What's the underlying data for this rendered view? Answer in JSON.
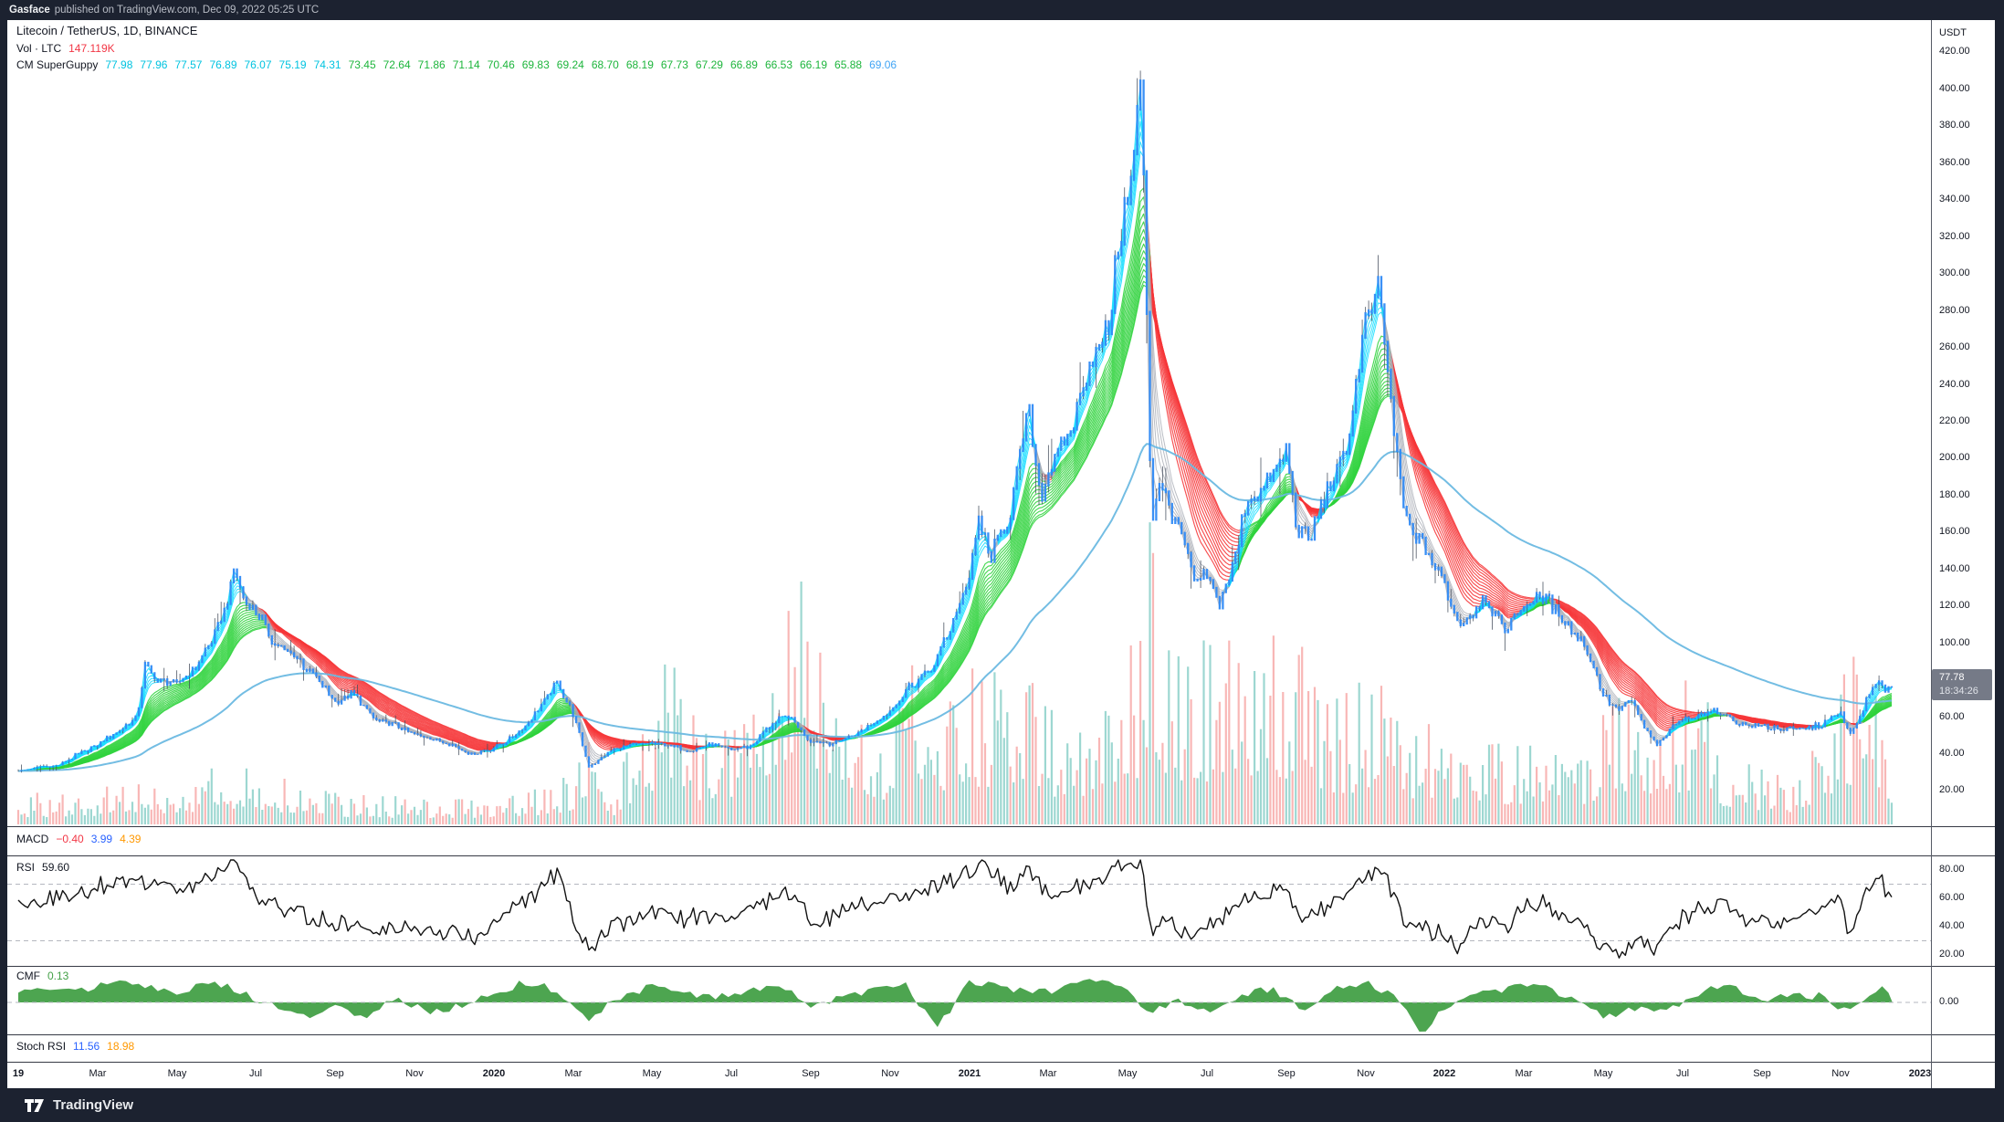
{
  "attribution": {
    "author": "Gasface",
    "text": "published on TradingView.com, Dec 09, 2022 05:25 UTC"
  },
  "symbol": {
    "title": "Litecoin / TetherUS, 1D, BINANCE"
  },
  "volume_legend": {
    "label": "Vol · LTC",
    "value": "147.119K"
  },
  "superguppy": {
    "label": "CM SuperGuppy",
    "fast_values": [
      "77.98",
      "77.96",
      "77.57",
      "76.89",
      "76.07",
      "75.19",
      "74.31"
    ],
    "slow_values": [
      "73.45",
      "72.64",
      "71.86",
      "71.14",
      "70.46",
      "69.83",
      "69.24",
      "68.70",
      "68.19",
      "67.73",
      "67.29",
      "66.89",
      "66.53",
      "66.19",
      "65.88"
    ],
    "last_value": "69.06"
  },
  "macd": {
    "label": "MACD",
    "values": [
      {
        "text": "−0.40",
        "color": "#f23645"
      },
      {
        "text": "3.99",
        "color": "#2962ff"
      },
      {
        "text": "4.39",
        "color": "#ff9800"
      }
    ]
  },
  "rsi": {
    "label": "RSI",
    "value": "59.60",
    "axis_values": [
      80,
      60,
      40,
      20
    ],
    "bands": [
      70,
      30
    ]
  },
  "cmf": {
    "label": "CMF",
    "value": "0.13",
    "axis_values": [
      0
    ]
  },
  "stoch": {
    "label": "Stoch RSI",
    "values": [
      {
        "text": "11.56",
        "color": "#2962ff"
      },
      {
        "text": "18.98",
        "color": "#ff9800"
      }
    ]
  },
  "price_axis": {
    "currency": "USDT",
    "tick_values": [
      420,
      400,
      380,
      360,
      340,
      320,
      300,
      280,
      260,
      240,
      220,
      200,
      180,
      160,
      140,
      120,
      100,
      80,
      60,
      40,
      20
    ],
    "last_price": "77.78",
    "countdown": "18:34:26"
  },
  "time_axis": [
    {
      "m": 0,
      "label": "19",
      "year": true
    },
    {
      "m": 2,
      "label": "Mar"
    },
    {
      "m": 4,
      "label": "May"
    },
    {
      "m": 6,
      "label": "Jul"
    },
    {
      "m": 8,
      "label": "Sep"
    },
    {
      "m": 10,
      "label": "Nov"
    },
    {
      "m": 12,
      "label": "2020",
      "year": true
    },
    {
      "m": 14,
      "label": "Mar"
    },
    {
      "m": 16,
      "label": "May"
    },
    {
      "m": 18,
      "label": "Jul"
    },
    {
      "m": 20,
      "label": "Sep"
    },
    {
      "m": 22,
      "label": "Nov"
    },
    {
      "m": 24,
      "label": "2021",
      "year": true
    },
    {
      "m": 26,
      "label": "Mar"
    },
    {
      "m": 28,
      "label": "May"
    },
    {
      "m": 30,
      "label": "Jul"
    },
    {
      "m": 32,
      "label": "Sep"
    },
    {
      "m": 34,
      "label": "Nov"
    },
    {
      "m": 36,
      "label": "2022",
      "year": true
    },
    {
      "m": 38,
      "label": "Mar"
    },
    {
      "m": 40,
      "label": "May"
    },
    {
      "m": 42,
      "label": "Jul"
    },
    {
      "m": 44,
      "label": "Sep"
    },
    {
      "m": 46,
      "label": "Nov"
    },
    {
      "m": 48,
      "label": "2023",
      "year": true
    }
  ],
  "footer": {
    "brand": "TradingView"
  },
  "colors": {
    "candle": "#2f8af5",
    "wick": "#46505e",
    "guppy_fast": "#00dbff",
    "guppy_fast_flat": "#a9adb5",
    "guppy_up": "#2fd33c",
    "guppy_down": "#f63538",
    "guppy_flat": "#9aa0a6",
    "ma_long": "#6cb9e2",
    "vol_up": "rgba(38,166,154,0.45)",
    "vol_down": "rgba(239,83,80,0.42)",
    "rsi_line": "#121212",
    "band_dash": "#b4b7bf",
    "cmf_fill": "#43a047",
    "text_cyan": "#00c3e0",
    "text_green": "#1db53c",
    "text_blue": "#42a5f5",
    "vol_value_red": "#f23645",
    "tag_bg": "#757a87"
  },
  "chart_data": {
    "type": "candlestick",
    "title": "Litecoin / TetherUS, 1D, BINANCE",
    "x_unit": "months since Jan 2019",
    "x_range": [
      0,
      48
    ],
    "price_ylim": [
      0,
      437
    ],
    "legend_position": "top-left",
    "grid": false,
    "guppy_fast_periods_days": [
      3,
      5,
      7,
      9,
      11,
      13,
      15
    ],
    "guppy_slow_periods_days": [
      25,
      28,
      31,
      34,
      37,
      40,
      43,
      46,
      49,
      52,
      55,
      58,
      61,
      64,
      66
    ],
    "ma_long_period_days": 200,
    "price_anchors": [
      [
        0,
        31
      ],
      [
        0.6,
        33
      ],
      [
        1,
        34
      ],
      [
        1.6,
        41
      ],
      [
        2,
        45
      ],
      [
        2.5,
        52
      ],
      [
        3,
        60
      ],
      [
        3.2,
        88
      ],
      [
        3.5,
        80
      ],
      [
        4,
        78
      ],
      [
        4.5,
        88
      ],
      [
        5,
        105
      ],
      [
        5.3,
        124
      ],
      [
        5.45,
        140
      ],
      [
        5.7,
        124
      ],
      [
        6,
        118
      ],
      [
        6.5,
        99
      ],
      [
        7,
        93
      ],
      [
        7.5,
        81
      ],
      [
        8,
        69
      ],
      [
        8.5,
        73
      ],
      [
        9,
        58
      ],
      [
        9.5,
        56
      ],
      [
        10,
        51
      ],
      [
        10.5,
        48
      ],
      [
        11,
        45
      ],
      [
        11.4,
        40
      ],
      [
        12,
        43
      ],
      [
        12.5,
        50
      ],
      [
        13,
        60
      ],
      [
        13.6,
        79
      ],
      [
        14,
        62
      ],
      [
        14.4,
        33
      ],
      [
        14.8,
        39
      ],
      [
        15,
        42
      ],
      [
        15.5,
        45
      ],
      [
        16,
        46
      ],
      [
        16.5,
        44
      ],
      [
        17,
        42
      ],
      [
        17.5,
        45
      ],
      [
        18,
        42
      ],
      [
        18.5,
        44
      ],
      [
        19,
        56
      ],
      [
        19.4,
        61
      ],
      [
        20,
        47
      ],
      [
        20.5,
        46
      ],
      [
        21,
        49
      ],
      [
        21.5,
        56
      ],
      [
        22,
        63
      ],
      [
        22.5,
        76
      ],
      [
        23,
        84
      ],
      [
        23.5,
        108
      ],
      [
        24,
        135
      ],
      [
        24.25,
        168
      ],
      [
        24.5,
        146
      ],
      [
        25,
        168
      ],
      [
        25.5,
        228
      ],
      [
        25.8,
        178
      ],
      [
        26,
        192
      ],
      [
        26.5,
        212
      ],
      [
        27,
        248
      ],
      [
        27.5,
        268
      ],
      [
        27.8,
        322
      ],
      [
        28.1,
        350
      ],
      [
        28.35,
        408
      ],
      [
        28.6,
        165
      ],
      [
        28.8,
        188
      ],
      [
        29,
        176
      ],
      [
        29.3,
        162
      ],
      [
        29.7,
        132
      ],
      [
        30,
        136
      ],
      [
        30.3,
        122
      ],
      [
        30.7,
        144
      ],
      [
        31,
        178
      ],
      [
        31.5,
        186
      ],
      [
        32,
        205
      ],
      [
        32.25,
        162
      ],
      [
        32.6,
        156
      ],
      [
        33,
        182
      ],
      [
        33.5,
        202
      ],
      [
        34,
        272
      ],
      [
        34.35,
        290
      ],
      [
        34.7,
        218
      ],
      [
        35,
        168
      ],
      [
        35.5,
        152
      ],
      [
        36,
        132
      ],
      [
        36.35,
        110
      ],
      [
        36.7,
        116
      ],
      [
        37,
        126
      ],
      [
        37.5,
        107
      ],
      [
        38,
        121
      ],
      [
        38.5,
        126
      ],
      [
        39,
        112
      ],
      [
        39.5,
        101
      ],
      [
        40,
        72
      ],
      [
        40.35,
        64
      ],
      [
        40.7,
        69
      ],
      [
        41,
        56
      ],
      [
        41.35,
        44
      ],
      [
        41.7,
        53
      ],
      [
        42,
        59
      ],
      [
        42.5,
        62
      ],
      [
        43,
        63
      ],
      [
        43.4,
        56
      ],
      [
        44,
        55
      ],
      [
        44.5,
        54
      ],
      [
        45,
        53
      ],
      [
        45.5,
        56
      ],
      [
        46,
        62
      ],
      [
        46.25,
        50
      ],
      [
        46.6,
        67
      ],
      [
        46.9,
        79
      ],
      [
        47.1,
        75
      ],
      [
        47.3,
        77.8
      ]
    ],
    "volume_rel_anchors": [
      [
        0,
        0.08
      ],
      [
        2,
        0.1
      ],
      [
        4,
        0.12
      ],
      [
        5.45,
        0.18
      ],
      [
        6,
        0.14
      ],
      [
        8,
        0.09
      ],
      [
        10,
        0.07
      ],
      [
        12,
        0.08
      ],
      [
        13.6,
        0.12
      ],
      [
        14.4,
        0.22
      ],
      [
        15,
        0.1
      ],
      [
        16,
        0.35
      ],
      [
        16.5,
        0.55
      ],
      [
        17,
        0.3
      ],
      [
        18,
        0.25
      ],
      [
        19,
        0.45
      ],
      [
        19.8,
        1.0
      ],
      [
        20.2,
        0.55
      ],
      [
        21,
        0.3
      ],
      [
        22,
        0.28
      ],
      [
        22.6,
        0.55
      ],
      [
        23.2,
        0.4
      ],
      [
        24.25,
        0.45
      ],
      [
        25.5,
        0.4
      ],
      [
        26,
        0.3
      ],
      [
        27.8,
        0.38
      ],
      [
        28.35,
        0.6
      ],
      [
        28.6,
        0.85
      ],
      [
        29,
        0.55
      ],
      [
        29.7,
        0.5
      ],
      [
        30.7,
        0.55
      ],
      [
        31.5,
        0.6
      ],
      [
        32.25,
        0.5
      ],
      [
        33,
        0.35
      ],
      [
        34.35,
        0.4
      ],
      [
        35,
        0.28
      ],
      [
        36.35,
        0.3
      ],
      [
        37,
        0.22
      ],
      [
        38,
        0.24
      ],
      [
        39,
        0.18
      ],
      [
        40.35,
        0.35
      ],
      [
        41.35,
        0.28
      ],
      [
        42.3,
        0.42
      ],
      [
        43,
        0.22
      ],
      [
        44,
        0.16
      ],
      [
        45,
        0.14
      ],
      [
        46.25,
        0.45
      ],
      [
        46.9,
        0.38
      ],
      [
        47.3,
        0.22
      ]
    ],
    "rsi_anchors": [
      [
        0,
        55
      ],
      [
        1,
        60
      ],
      [
        2,
        68
      ],
      [
        3,
        72
      ],
      [
        4,
        65
      ],
      [
        5,
        78
      ],
      [
        5.5,
        85
      ],
      [
        6,
        60
      ],
      [
        7,
        50
      ],
      [
        8,
        42
      ],
      [
        9,
        38
      ],
      [
        10,
        40
      ],
      [
        11,
        35
      ],
      [
        11.5,
        30
      ],
      [
        12,
        45
      ],
      [
        13,
        62
      ],
      [
        13.6,
        80
      ],
      [
        14,
        50
      ],
      [
        14.4,
        23
      ],
      [
        15,
        40
      ],
      [
        16,
        52
      ],
      [
        17,
        45
      ],
      [
        18,
        48
      ],
      [
        19,
        60
      ],
      [
        19.5,
        65
      ],
      [
        20,
        45
      ],
      [
        21,
        50
      ],
      [
        22,
        60
      ],
      [
        23,
        65
      ],
      [
        23.5,
        72
      ],
      [
        24,
        78
      ],
      [
        24.3,
        85
      ],
      [
        25,
        68
      ],
      [
        25.5,
        80
      ],
      [
        26,
        62
      ],
      [
        27,
        70
      ],
      [
        27.8,
        82
      ],
      [
        28.3,
        87
      ],
      [
        28.6,
        35
      ],
      [
        29,
        45
      ],
      [
        29.6,
        35
      ],
      [
        30,
        40
      ],
      [
        30.6,
        50
      ],
      [
        31,
        60
      ],
      [
        32,
        68
      ],
      [
        32.3,
        45
      ],
      [
        33,
        55
      ],
      [
        33.5,
        62
      ],
      [
        34,
        75
      ],
      [
        34.4,
        80
      ],
      [
        35,
        45
      ],
      [
        35.5,
        40
      ],
      [
        36,
        35
      ],
      [
        36.3,
        28
      ],
      [
        37,
        45
      ],
      [
        37.5,
        38
      ],
      [
        38,
        52
      ],
      [
        38.5,
        58
      ],
      [
        39,
        45
      ],
      [
        39.5,
        40
      ],
      [
        40,
        28
      ],
      [
        40.4,
        22
      ],
      [
        41,
        30
      ],
      [
        41.4,
        25
      ],
      [
        42,
        45
      ],
      [
        42.5,
        55
      ],
      [
        43,
        58
      ],
      [
        43.4,
        45
      ],
      [
        44,
        48
      ],
      [
        44.5,
        45
      ],
      [
        45,
        50
      ],
      [
        45.5,
        55
      ],
      [
        46,
        60
      ],
      [
        46.2,
        30
      ],
      [
        46.6,
        65
      ],
      [
        47,
        72
      ],
      [
        47.3,
        60
      ]
    ],
    "cmf_anchors": [
      [
        0,
        0.1
      ],
      [
        0.8,
        0.16
      ],
      [
        1.6,
        0.12
      ],
      [
        2.4,
        0.2
      ],
      [
        3.2,
        0.16
      ],
      [
        4,
        0.08
      ],
      [
        4.8,
        0.22
      ],
      [
        5.6,
        0.12
      ],
      [
        6.4,
        -0.04
      ],
      [
        7.2,
        -0.14
      ],
      [
        8,
        -0.06
      ],
      [
        8.8,
        -0.12
      ],
      [
        9.6,
        0.04
      ],
      [
        10.4,
        -0.1
      ],
      [
        11.2,
        -0.04
      ],
      [
        12,
        0.1
      ],
      [
        12.8,
        0.2
      ],
      [
        13.6,
        0.12
      ],
      [
        14.4,
        -0.16
      ],
      [
        15.2,
        0.06
      ],
      [
        16,
        0.16
      ],
      [
        16.8,
        0.08
      ],
      [
        17.6,
        0.04
      ],
      [
        18.4,
        0.12
      ],
      [
        19.2,
        0.18
      ],
      [
        20,
        -0.06
      ],
      [
        20.8,
        0.06
      ],
      [
        21.6,
        0.12
      ],
      [
        22.4,
        0.16
      ],
      [
        23.2,
        -0.26
      ],
      [
        24,
        0.22
      ],
      [
        24.8,
        0.16
      ],
      [
        25.6,
        0.1
      ],
      [
        26.4,
        0.14
      ],
      [
        27.2,
        0.22
      ],
      [
        28,
        0.12
      ],
      [
        28.6,
        -0.12
      ],
      [
        29.2,
        0.04
      ],
      [
        30,
        -0.1
      ],
      [
        30.8,
        0.06
      ],
      [
        31.6,
        0.14
      ],
      [
        32.4,
        -0.06
      ],
      [
        33.2,
        0.12
      ],
      [
        34,
        0.2
      ],
      [
        34.8,
        0.06
      ],
      [
        35.4,
        -0.3
      ],
      [
        36,
        -0.06
      ],
      [
        36.8,
        0.08
      ],
      [
        37.6,
        0.14
      ],
      [
        38.4,
        0.16
      ],
      [
        39.2,
        0.06
      ],
      [
        40,
        -0.14
      ],
      [
        40.8,
        -0.06
      ],
      [
        41.6,
        -0.1
      ],
      [
        42.4,
        0.1
      ],
      [
        43.2,
        0.16
      ],
      [
        44,
        0.04
      ],
      [
        44.8,
        0.08
      ],
      [
        45.6,
        0.06
      ],
      [
        46.2,
        -0.12
      ],
      [
        46.8,
        0.12
      ],
      [
        47.3,
        0.13
      ]
    ]
  }
}
